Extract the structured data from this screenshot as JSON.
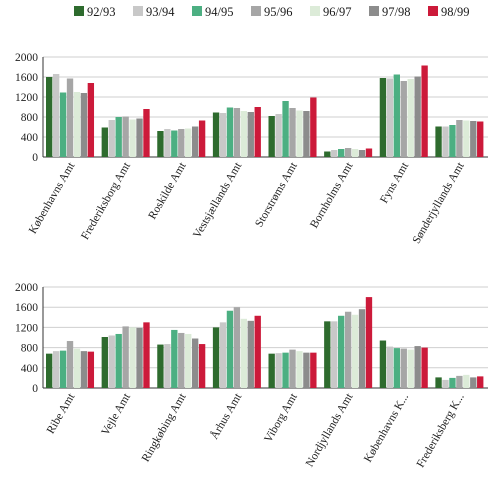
{
  "chart_data": {
    "type": "bar",
    "legend_position": "top",
    "grid": true,
    "series": [
      {
        "name": "92/93",
        "color": "#2e6b2e"
      },
      {
        "name": "93/94",
        "color": "#c8c8c8"
      },
      {
        "name": "94/95",
        "color": "#4caf82"
      },
      {
        "name": "95/96",
        "color": "#a6a6a6"
      },
      {
        "name": "96/97",
        "color": "#dcebd8"
      },
      {
        "name": "97/98",
        "color": "#8c8c8c"
      },
      {
        "name": "98/99",
        "color": "#cc1a3a"
      }
    ],
    "panels": [
      {
        "ylim": [
          0,
          2000
        ],
        "yticks": [
          "0",
          "400",
          "800",
          "1200",
          "1600",
          "2000"
        ],
        "categories": [
          "Københavns Amt",
          "Frederiksborg Amt",
          "Roskilde Amt",
          "Vestsjællands Amt",
          "Storstrøms Amt",
          "Bornholms Amt",
          "Fyns Amt",
          "Sønderjyllands Amt"
        ],
        "values": [
          [
            1600,
            1660,
            1290,
            1570,
            1300,
            1280,
            1480
          ],
          [
            590,
            740,
            800,
            810,
            750,
            770,
            960
          ],
          [
            520,
            560,
            530,
            560,
            570,
            610,
            730
          ],
          [
            890,
            880,
            990,
            980,
            920,
            900,
            1000
          ],
          [
            820,
            860,
            1120,
            980,
            930,
            920,
            1190
          ],
          [
            110,
            140,
            160,
            180,
            160,
            140,
            170
          ],
          [
            1580,
            1570,
            1650,
            1520,
            1560,
            1610,
            1830
          ],
          [
            610,
            610,
            640,
            740,
            730,
            720,
            710
          ]
        ]
      },
      {
        "ylim": [
          0,
          2000
        ],
        "yticks": [
          "0",
          "400",
          "800",
          "1200",
          "1600",
          "2000"
        ],
        "categories": [
          "Ribe Amt",
          "Vejle Amt",
          "Ringkøbing Amt",
          "Århus Amt",
          "Viborg Amt",
          "Nordjyllands Amt",
          "Københavns K...",
          "Frederiksberg K..."
        ],
        "values": [
          [
            680,
            730,
            740,
            930,
            780,
            730,
            720
          ],
          [
            1010,
            1040,
            1070,
            1220,
            1200,
            1190,
            1300
          ],
          [
            860,
            870,
            1150,
            1090,
            1070,
            980,
            870
          ],
          [
            1200,
            1300,
            1530,
            1600,
            1370,
            1330,
            1430
          ],
          [
            680,
            690,
            700,
            760,
            730,
            700,
            700
          ],
          [
            1320,
            1320,
            1430,
            1510,
            1450,
            1560,
            1800
          ],
          [
            940,
            820,
            790,
            780,
            760,
            830,
            800
          ],
          [
            210,
            160,
            200,
            240,
            260,
            210,
            230
          ]
        ]
      }
    ]
  }
}
